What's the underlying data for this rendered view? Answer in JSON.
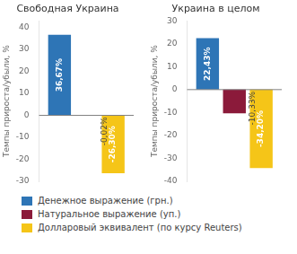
{
  "chart_data": [
    {
      "type": "bar",
      "title": "Свободная Украина",
      "ylabel": "Темпы прироста/убыли, %",
      "categories": [
        null
      ],
      "series": [
        {
          "name": "Денежное выражение (грн.)",
          "color": "#2e75b6",
          "values": [
            36.67
          ],
          "value_labels": [
            "36,67%"
          ]
        },
        {
          "name": "Натуральное выражение (уп.)",
          "color": "#8b1a3a",
          "values": [
            -0.02
          ],
          "value_labels": [
            "-0,02%"
          ]
        },
        {
          "name": "Долларовый эквивалент (по курсу Reuters)",
          "color": "#f5c518",
          "values": [
            -26.3
          ],
          "value_labels": [
            "-26,30%"
          ]
        }
      ],
      "ylim": [
        -30,
        43
      ],
      "yticks": [
        -30,
        -20,
        -10,
        0,
        10,
        20,
        30,
        40
      ],
      "grid": false,
      "legend": "bottom",
      "data_labels": true,
      "tick_labels": "y"
    },
    {
      "type": "bar",
      "title": "Украина в целом",
      "ylabel": "Темпы прироста/убыли, %",
      "categories": [
        null
      ],
      "series": [
        {
          "name": "Денежное выражение (грн.)",
          "color": "#2e75b6",
          "values": [
            22.43
          ],
          "value_labels": [
            "22,43%"
          ]
        },
        {
          "name": "Натуральное выражение (уп.)",
          "color": "#8b1a3a",
          "values": [
            -10.33
          ],
          "value_labels": [
            "-10,33%"
          ]
        },
        {
          "name": "Долларовый эквивалент (по курсу Reuters)",
          "color": "#f5c518",
          "values": [
            -34.2
          ],
          "value_labels": [
            "-34,20%"
          ]
        }
      ],
      "ylim": [
        -40,
        30
      ],
      "yticks": [
        -40,
        -30,
        -20,
        -10,
        0,
        10,
        20,
        30
      ],
      "grid": false,
      "legend": "bottom",
      "data_labels": true,
      "tick_labels": "y"
    }
  ]
}
